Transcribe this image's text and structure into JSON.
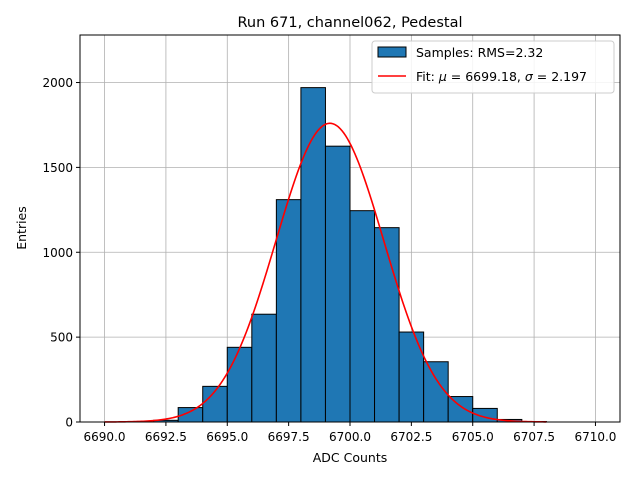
{
  "chart_data": {
    "type": "bar",
    "title": "Run 671, channel062, Pedestal",
    "xlabel": "ADC Counts",
    "ylabel": "Entries",
    "xlim": [
      6689.0,
      6711.0
    ],
    "ylim": [
      0,
      2280
    ],
    "grid": true,
    "legend_position": "upper-right",
    "x_ticks": [
      {
        "value": 6690.0,
        "label": "6690.0"
      },
      {
        "value": 6692.5,
        "label": "6692.5"
      },
      {
        "value": 6695.0,
        "label": "6695.0"
      },
      {
        "value": 6697.5,
        "label": "6697.5"
      },
      {
        "value": 6700.0,
        "label": "6700.0"
      },
      {
        "value": 6702.5,
        "label": "6702.5"
      },
      {
        "value": 6705.0,
        "label": "6705.0"
      },
      {
        "value": 6707.5,
        "label": "6707.5"
      },
      {
        "value": 6710.0,
        "label": "6710.0"
      }
    ],
    "y_ticks": [
      {
        "value": 0,
        "label": "0"
      },
      {
        "value": 500,
        "label": "500"
      },
      {
        "value": 1000,
        "label": "1000"
      },
      {
        "value": 1500,
        "label": "1500"
      },
      {
        "value": 2000,
        "label": "2000"
      }
    ],
    "histogram": {
      "bin_width": 1.0,
      "color": "#1f77b4",
      "edge_color": "#000000",
      "bins": [
        {
          "start": 6692.0,
          "count": 10
        },
        {
          "start": 6693.0,
          "count": 85
        },
        {
          "start": 6694.0,
          "count": 210
        },
        {
          "start": 6695.0,
          "count": 440
        },
        {
          "start": 6696.0,
          "count": 635
        },
        {
          "start": 6697.0,
          "count": 1310
        },
        {
          "start": 6698.0,
          "count": 1970
        },
        {
          "start": 6699.0,
          "count": 1625
        },
        {
          "start": 6700.0,
          "count": 1245
        },
        {
          "start": 6701.0,
          "count": 1145
        },
        {
          "start": 6702.0,
          "count": 530
        },
        {
          "start": 6703.0,
          "count": 355
        },
        {
          "start": 6704.0,
          "count": 150
        },
        {
          "start": 6705.0,
          "count": 80
        },
        {
          "start": 6706.0,
          "count": 15
        },
        {
          "start": 6707.0,
          "count": 3
        }
      ]
    },
    "fit": {
      "mu": 6699.18,
      "sigma": 2.197,
      "amplitude": 1760,
      "x_range": [
        6690.0,
        6708.0
      ],
      "color": "#ff0000"
    },
    "legend": [
      {
        "text": "Samples: RMS=2.32",
        "kind": "patch",
        "color": "#1f77b4"
      },
      {
        "text_prefix": "Fit: ",
        "mu_symbol": "μ",
        "mu_text": " = 6699.18, ",
        "sigma_symbol": "σ",
        "sigma_text": " = 2.197",
        "kind": "line",
        "color": "#ff0000"
      }
    ]
  }
}
